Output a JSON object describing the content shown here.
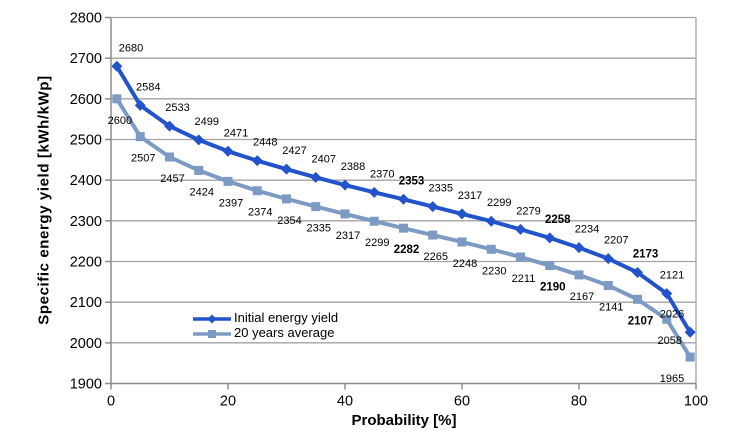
{
  "chart_data": {
    "type": "line",
    "title": "",
    "xlabel": "Probability [%]",
    "ylabel": "Specific energy yield [kWh/kWp]",
    "xlim": [
      0,
      100
    ],
    "ylim": [
      1900,
      2800
    ],
    "xticks": [
      0,
      20,
      40,
      60,
      80,
      100
    ],
    "yticks": [
      1900,
      2000,
      2100,
      2200,
      2300,
      2400,
      2500,
      2600,
      2700,
      2800
    ],
    "grid": "horizontal",
    "legend_position": "inside-bottom-left",
    "x": [
      1,
      5,
      10,
      15,
      20,
      25,
      30,
      35,
      40,
      45,
      50,
      55,
      60,
      65,
      70,
      75,
      80,
      85,
      90,
      95,
      99
    ],
    "series": [
      {
        "name": "Initial energy yield",
        "color": "#2253cb",
        "marker": "diamond",
        "label_position": "above",
        "values": [
          2680,
          2584,
          2533,
          2499,
          2471,
          2448,
          2427,
          2407,
          2388,
          2370,
          2353,
          2335,
          2317,
          2299,
          2279,
          2258,
          2234,
          2207,
          2173,
          2121,
          2026
        ],
        "bold_label_indices": [
          10,
          15,
          18
        ]
      },
      {
        "name": "20 years average",
        "color": "#7d9ac4",
        "marker": "square",
        "label_position": "below",
        "values": [
          2600,
          2507,
          2457,
          2424,
          2397,
          2374,
          2354,
          2335,
          2317,
          2299,
          2282,
          2265,
          2248,
          2230,
          2211,
          2190,
          2167,
          2141,
          2107,
          2058,
          1965
        ],
        "bold_label_indices": [
          10,
          15,
          18
        ]
      }
    ]
  },
  "colors": {
    "gridline": "#a3a3a3",
    "axis": "#8c8c8c",
    "label": "#000000",
    "background": "#ffffff"
  }
}
